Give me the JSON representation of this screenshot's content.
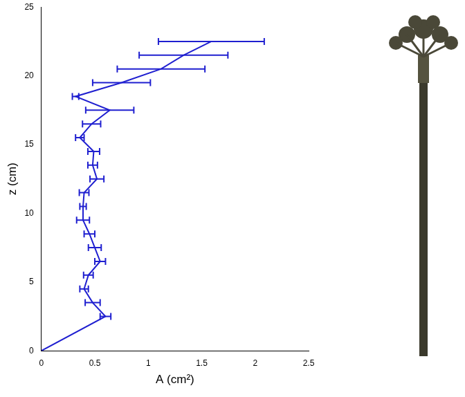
{
  "chart_data": {
    "type": "line",
    "x_label": "A (cm²)",
    "y_label": "z (cm)",
    "x": [
      0,
      0.6,
      0.48,
      0.4,
      0.44,
      0.55,
      0.5,
      0.45,
      0.39,
      0.39,
      0.4,
      0.52,
      0.48,
      0.49,
      0.36,
      0.47,
      0.64,
      0.32,
      0.75,
      1.12,
      1.33,
      1.59
    ],
    "y": [
      0,
      2.5,
      3.5,
      4.5,
      5.5,
      6.5,
      7.5,
      8.5,
      9.5,
      10.5,
      11.5,
      12.5,
      13.5,
      14.5,
      15.5,
      16.5,
      17.5,
      18.5,
      19.5,
      20.5,
      21.5,
      22.5
    ],
    "xerr": [
      null,
      0.05,
      0.07,
      0.04,
      0.045,
      0.05,
      0.06,
      0.05,
      0.06,
      0.03,
      0.045,
      0.065,
      0.045,
      0.055,
      0.04,
      0.085,
      0.225,
      0.03,
      0.27,
      0.41,
      0.415,
      0.495
    ],
    "color": "#1f1fd0",
    "xlim": [
      0,
      2.5
    ],
    "xticks": [
      0,
      0.5,
      1,
      1.5,
      2,
      2.5
    ],
    "ylim": [
      0,
      25
    ],
    "yticks": [
      0,
      5,
      10,
      15,
      20,
      25
    ],
    "grid": false
  }
}
